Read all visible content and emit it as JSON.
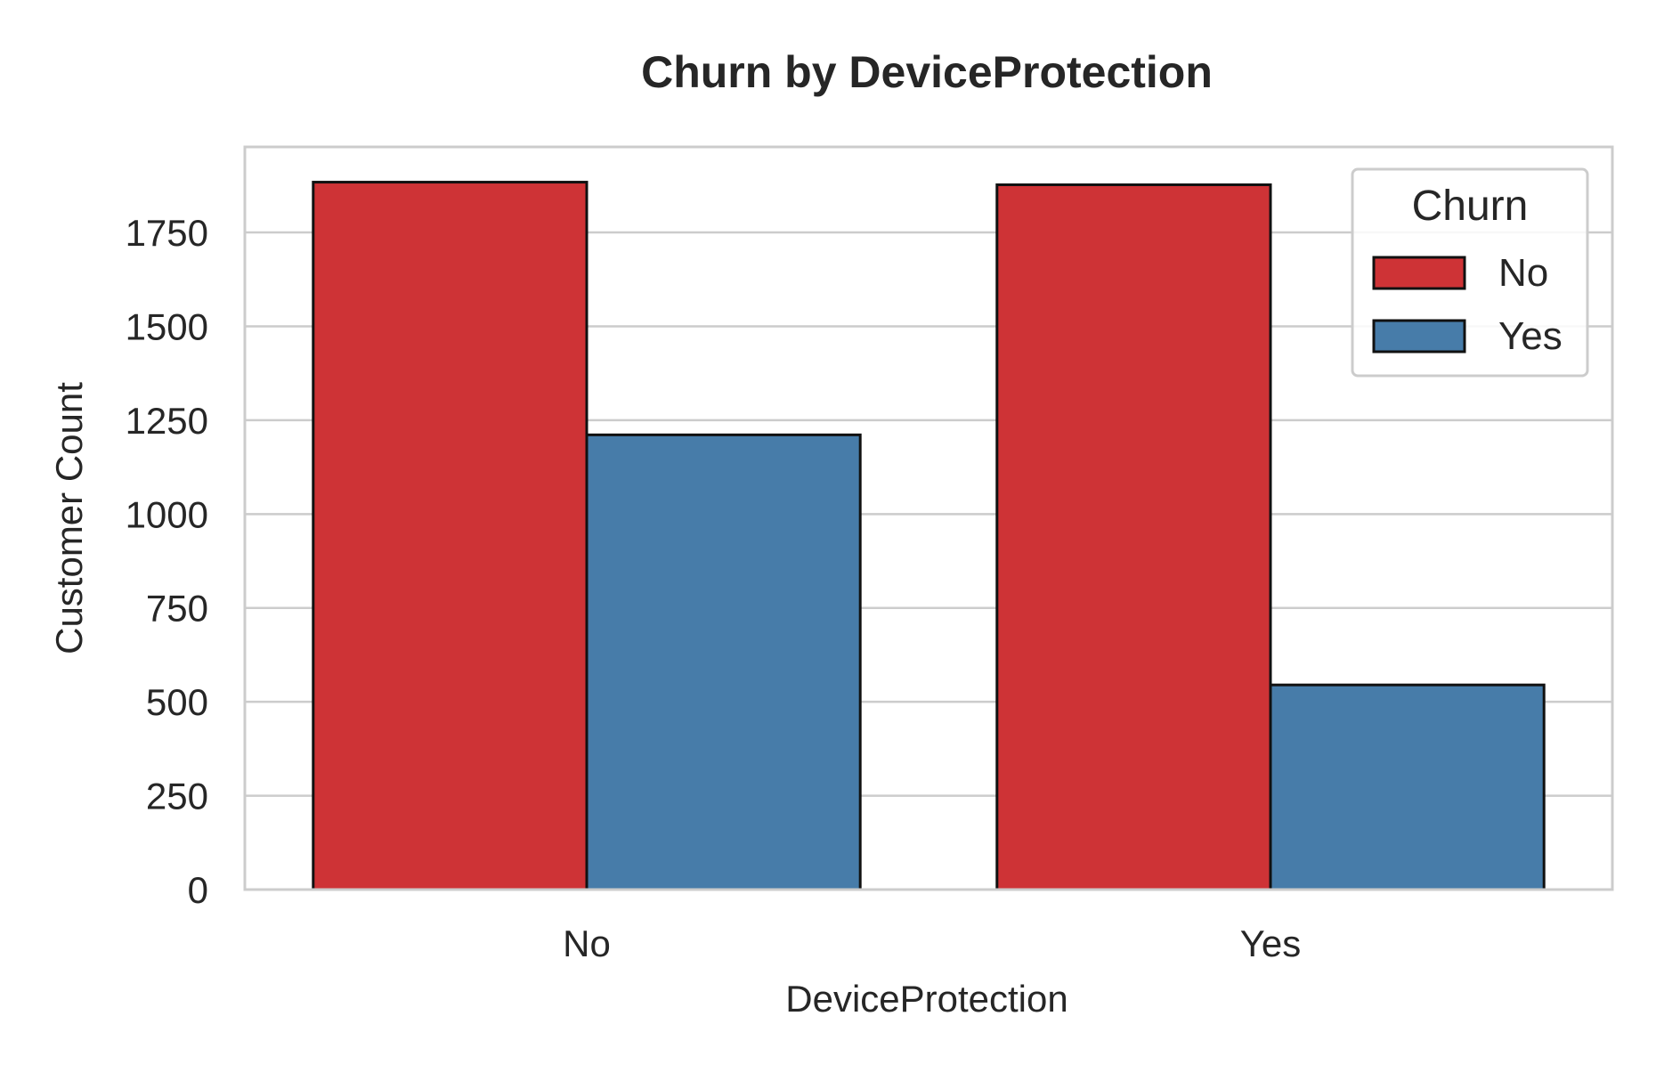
{
  "chart_data": {
    "type": "bar",
    "title": "Churn by DeviceProtection",
    "xlabel": "DeviceProtection",
    "ylabel": "Customer Count",
    "categories": [
      "No",
      "Yes"
    ],
    "series": [
      {
        "name": "No",
        "values": [
          1884,
          1877
        ],
        "color": "#CE3336"
      },
      {
        "name": "Yes",
        "values": [
          1211,
          545
        ],
        "color": "#477CA9"
      }
    ],
    "ylim": [
      0,
      1980
    ],
    "yticks": [
      0,
      250,
      500,
      750,
      1000,
      1250,
      1500,
      1750
    ],
    "grid": "y",
    "legend": {
      "title": "Churn",
      "position": "top-right"
    }
  }
}
